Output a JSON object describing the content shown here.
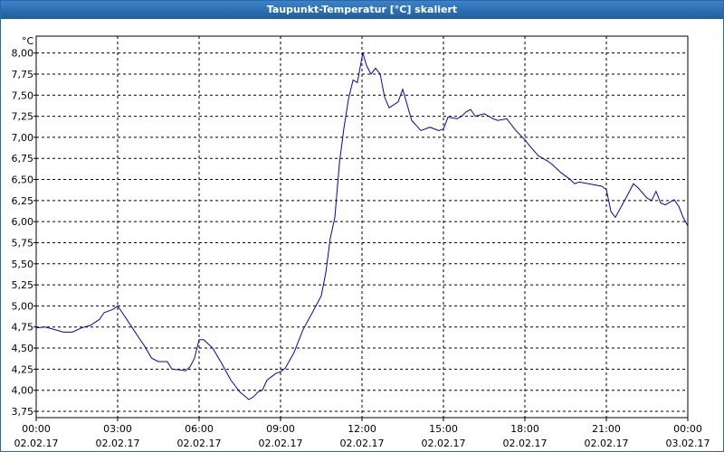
{
  "chart_data": {
    "type": "line",
    "title": "Taupunkt-Temperatur [°C] skaliert",
    "y_unit": "°C",
    "x": [
      0,
      0.33,
      0.67,
      1,
      1.33,
      1.67,
      2,
      2.33,
      2.5,
      2.83,
      3,
      3.17,
      3.5,
      3.83,
      4,
      4.25,
      4.5,
      4.83,
      5,
      5.33,
      5.5,
      5.67,
      5.83,
      6,
      6.17,
      6.5,
      6.83,
      7.17,
      7.5,
      7.83,
      8,
      8.17,
      8.33,
      8.5,
      8.83,
      9,
      9.17,
      9.5,
      9.83,
      10.17,
      10.5,
      10.67,
      10.83,
      11,
      11.17,
      11.33,
      11.5,
      11.67,
      11.83,
      12,
      12.03,
      12.17,
      12.33,
      12.5,
      12.67,
      12.83,
      13,
      13.33,
      13.5,
      13.83,
      14.17,
      14.5,
      14.83,
      15,
      15.17,
      15.5,
      15.67,
      15.83,
      16,
      16.17,
      16.5,
      16.83,
      17,
      17.33,
      17.67,
      18,
      18.17,
      18.5,
      18.83,
      19,
      19.33,
      19.67,
      19.83,
      20,
      20.5,
      20.83,
      21,
      21.17,
      21.33,
      21.67,
      22,
      22.17,
      22.5,
      22.67,
      22.83,
      23,
      23.17,
      23.5,
      23.67,
      23.83,
      24
    ],
    "series": [
      {
        "color": "#0000cc",
        "values": [
          4.74,
          4.75,
          4.72,
          4.69,
          4.69,
          4.74,
          4.77,
          4.84,
          4.92,
          4.96,
          5.0,
          4.92,
          4.76,
          4.6,
          4.52,
          4.38,
          4.34,
          4.34,
          4.25,
          4.24,
          4.23,
          4.28,
          4.38,
          4.6,
          4.6,
          4.5,
          4.32,
          4.12,
          3.98,
          3.89,
          3.92,
          3.98,
          4.0,
          4.12,
          4.2,
          4.22,
          4.26,
          4.45,
          4.72,
          4.92,
          5.12,
          5.4,
          5.8,
          6.05,
          6.7,
          7.1,
          7.45,
          7.68,
          7.65,
          7.95,
          8.0,
          7.85,
          7.75,
          7.82,
          7.75,
          7.48,
          7.35,
          7.42,
          7.57,
          7.2,
          7.08,
          7.12,
          7.08,
          7.1,
          7.24,
          7.22,
          7.25,
          7.3,
          7.33,
          7.25,
          7.28,
          7.22,
          7.2,
          7.22,
          7.08,
          6.97,
          6.9,
          6.78,
          6.72,
          6.68,
          6.58,
          6.5,
          6.45,
          6.47,
          6.44,
          6.42,
          6.38,
          6.12,
          6.05,
          6.25,
          6.45,
          6.4,
          6.28,
          6.25,
          6.36,
          6.22,
          6.2,
          6.26,
          6.18,
          6.05,
          5.95
        ]
      }
    ],
    "xlim": [
      0,
      24
    ],
    "xticks": [
      {
        "value": 0,
        "label": "00:00"
      },
      {
        "value": 3,
        "label": "03:00"
      },
      {
        "value": 6,
        "label": "06:00"
      },
      {
        "value": 9,
        "label": "09:00"
      },
      {
        "value": 12,
        "label": "12:00"
      },
      {
        "value": 15,
        "label": "15:00"
      },
      {
        "value": 18,
        "label": "18:00"
      },
      {
        "value": 21,
        "label": "21:00"
      },
      {
        "value": 24,
        "label": "00:00"
      }
    ],
    "xtick_dates": [
      "02.02.17",
      "02.02.17",
      "02.02.17",
      "02.02.17",
      "02.02.17",
      "02.02.17",
      "02.02.17",
      "02.02.17",
      "03.02.17"
    ],
    "ylim": [
      3.675,
      8.2
    ],
    "yticks": [
      {
        "value": 3.75,
        "label": "3,75"
      },
      {
        "value": 4,
        "label": "4,00"
      },
      {
        "value": 4.25,
        "label": "4,25"
      },
      {
        "value": 4.5,
        "label": "4,50"
      },
      {
        "value": 4.75,
        "label": "4,75"
      },
      {
        "value": 5,
        "label": "5,00"
      },
      {
        "value": 5.25,
        "label": "5,25"
      },
      {
        "value": 5.5,
        "label": "5,50"
      },
      {
        "value": 5.75,
        "label": "5,75"
      },
      {
        "value": 6,
        "label": "6,00"
      },
      {
        "value": 6.25,
        "label": "6,25"
      },
      {
        "value": 6.5,
        "label": "6,50"
      },
      {
        "value": 6.75,
        "label": "6,75"
      },
      {
        "value": 7,
        "label": "7,00"
      },
      {
        "value": 7.25,
        "label": "7,25"
      },
      {
        "value": 7.5,
        "label": "7,50"
      },
      {
        "value": 7.75,
        "label": "7,75"
      },
      {
        "value": 8,
        "label": "8,00"
      }
    ],
    "grid": true
  }
}
